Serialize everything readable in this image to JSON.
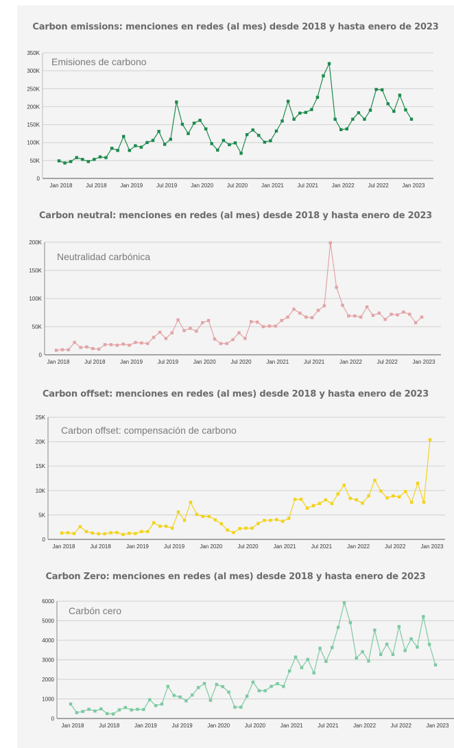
{
  "chart_data": [
    {
      "type": "line",
      "title": "Carbon emissions: menciones en redes (al mes) desde 2018 y hasta enero de 2023",
      "series_label": "Emisiones de carbono",
      "color": "#1c8a4c",
      "ylim": [
        0,
        350000
      ],
      "yticks": [
        0,
        50000,
        100000,
        150000,
        200000,
        250000,
        300000,
        350000
      ],
      "ytick_labels": [
        "0",
        "50K",
        "100K",
        "150K",
        "200K",
        "250K",
        "300K",
        "350K"
      ],
      "xtick_labels": [
        "Jan 2018",
        "Jul 2018",
        "Jan 2019",
        "Jul 2019",
        "Jan 2020",
        "Jul 2020",
        "Jan 2021",
        "Jul 2021",
        "Jan 2022",
        "Jul 2022",
        "Jan 2023"
      ],
      "x_start": "Jan 2018",
      "x_end": "Jan 2023",
      "grid": true,
      "values": [
        49000,
        43000,
        47000,
        58000,
        53000,
        47000,
        53000,
        60000,
        58000,
        84000,
        78000,
        117000,
        78000,
        91000,
        87000,
        100000,
        106000,
        131000,
        95000,
        109000,
        213000,
        151000,
        125000,
        154000,
        162000,
        138000,
        97000,
        79000,
        106000,
        94000,
        99000,
        70000,
        122000,
        135000,
        120000,
        101000,
        105000,
        132000,
        160000,
        215000,
        165000,
        182000,
        184000,
        192000,
        226000,
        286000,
        320000,
        165000,
        136000,
        138000,
        165000,
        183000,
        165000,
        190000,
        248000,
        247000,
        208000,
        187000,
        232000,
        191000,
        165000
      ]
    },
    {
      "type": "line",
      "title": "Carbon neutral: menciones en redes (al mes) desde 2018 y hasta enero de 2023",
      "series_label": "Neutralidad carbónica",
      "color": "#e3a3a6",
      "ylim": [
        0,
        200000
      ],
      "yticks": [
        0,
        50000,
        100000,
        150000,
        200000
      ],
      "ytick_labels": [
        "0",
        "50K",
        "100K",
        "150K",
        "200K"
      ],
      "xtick_labels": [
        "Jan 2018",
        "Jul 2018",
        "Jan 2019",
        "Jul 2019",
        "Jan 2020",
        "Jul 2020",
        "Jan 2021",
        "Jul 2021",
        "Jan 2022",
        "Jul 2022",
        "Jan 2023"
      ],
      "x_start": "Jan 2018",
      "x_end": "Jan 2023",
      "grid": true,
      "values": [
        8000,
        9000,
        9000,
        22000,
        13000,
        14000,
        11000,
        10000,
        18000,
        18000,
        17000,
        19000,
        17000,
        22000,
        21000,
        20000,
        31000,
        40000,
        29000,
        39000,
        62000,
        43000,
        47000,
        42000,
        57000,
        61000,
        28000,
        20000,
        20000,
        27000,
        39000,
        29000,
        59000,
        58000,
        50000,
        51000,
        51000,
        61000,
        67000,
        81000,
        74000,
        67000,
        66000,
        79000,
        87000,
        199000,
        120000,
        88000,
        69000,
        69000,
        67000,
        85000,
        70000,
        74000,
        63000,
        72000,
        71000,
        76000,
        72000,
        57000,
        67000
      ]
    },
    {
      "type": "line",
      "title": "Carbon offset: menciones en redes (al mes) desde 2018 y hasta enero de 2023",
      "series_label": "Carbon offset: compensación de carbono",
      "color": "#f2d31b",
      "ylim": [
        0,
        25000
      ],
      "yticks": [
        0,
        5000,
        10000,
        15000,
        20000,
        25000
      ],
      "ytick_labels": [
        "0",
        "5K",
        "10K",
        "15K",
        "20K",
        "25K"
      ],
      "xtick_labels": [
        "Jan 2018",
        "Jul 2018",
        "Jan 2019",
        "Jul 2019",
        "Jan 2020",
        "Jul 2020",
        "Jan 2021",
        "Jul 2021",
        "Jan 2022",
        "Jul 2022",
        "Jan 2023"
      ],
      "x_start": "Jan 2018",
      "x_end": "Jan 2023",
      "grid": true,
      "values": [
        1300,
        1350,
        1200,
        2600,
        1600,
        1300,
        1150,
        1150,
        1350,
        1400,
        1000,
        1250,
        1200,
        1600,
        1600,
        3400,
        2700,
        2700,
        2300,
        5600,
        3900,
        7600,
        5100,
        4700,
        4700,
        4000,
        3200,
        1900,
        1400,
        2200,
        2300,
        2300,
        3250,
        3900,
        3900,
        4050,
        3700,
        4300,
        8200,
        8200,
        6400,
        6900,
        7350,
        8100,
        7350,
        9300,
        11100,
        8400,
        8100,
        7400,
        8900,
        12100,
        9900,
        8500,
        8900,
        8700,
        9800,
        7600,
        11500,
        7600,
        20400
      ]
    },
    {
      "type": "line",
      "title": "Carbon Zero: menciones en redes (al mes) desde 2018 y hasta enero de 2023",
      "series_label": "Carbón cero",
      "color": "#7ccaa2",
      "ylim": [
        0,
        6000
      ],
      "yticks": [
        0,
        1000,
        2000,
        3000,
        4000,
        5000,
        6000
      ],
      "ytick_labels": [
        "0",
        "1000",
        "2000",
        "3000",
        "4000",
        "5000",
        "6000"
      ],
      "xtick_labels": [
        "Jan 2018",
        "Jul 2018",
        "Jan 2019",
        "Jul 2019",
        "Jan 2020",
        "Jul 2020",
        "Jan 2021",
        "Jul 2021",
        "Jan 2022",
        "Jul 2022",
        "Jan 2023"
      ],
      "x_start": "Jan 2018",
      "x_end": "Jan 2023",
      "grid": true,
      "values": [
        740,
        300,
        360,
        470,
        380,
        490,
        250,
        230,
        440,
        560,
        440,
        470,
        460,
        960,
        660,
        740,
        1640,
        1180,
        1100,
        900,
        1200,
        1580,
        1790,
        930,
        1740,
        1630,
        1350,
        580,
        580,
        1140,
        1860,
        1420,
        1420,
        1640,
        1780,
        1640,
        2430,
        3140,
        2600,
        3020,
        2330,
        3590,
        2920,
        3630,
        4660,
        5920,
        4900,
        3090,
        3410,
        2940,
        4520,
        3270,
        3800,
        3270,
        4700,
        3470,
        4070,
        3650,
        5210,
        3790,
        2740
      ]
    }
  ]
}
